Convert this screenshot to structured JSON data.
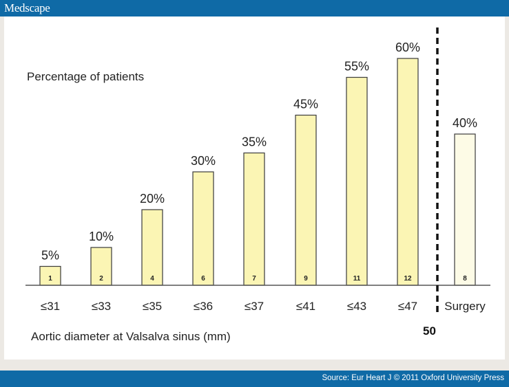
{
  "header": {
    "brand": "Medscape"
  },
  "footer": {
    "source": "Source: Eur Heart J © 2011 Oxford University Press"
  },
  "colors": {
    "header_bg": "#0f6aa6",
    "bar_fill": "#fbf5b4",
    "surgery_fill": "#fdfbe6",
    "bar_stroke": "#3a3a3a"
  },
  "chart_data": {
    "type": "bar",
    "title": "Percentage of patients",
    "xlabel": "Aortic diameter at Valsalva sinus (mm)",
    "ylabel": "",
    "ylim": [
      0,
      60
    ],
    "categories": [
      "≤31",
      "≤33",
      "≤35",
      "≤36",
      "≤37",
      "≤41",
      "≤43",
      "≤47",
      "Surgery"
    ],
    "values": [
      5,
      10,
      20,
      30,
      35,
      45,
      55,
      60,
      40
    ],
    "value_labels": [
      "5%",
      "10%",
      "20%",
      "30%",
      "35%",
      "45%",
      "55%",
      "60%",
      "40%"
    ],
    "counts": [
      "1",
      "2",
      "4",
      "6",
      "7",
      "9",
      "11",
      "12",
      "8"
    ],
    "threshold": {
      "label": "50",
      "position": "between ≤47 and Surgery",
      "style": "dashed"
    },
    "grid": false
  }
}
